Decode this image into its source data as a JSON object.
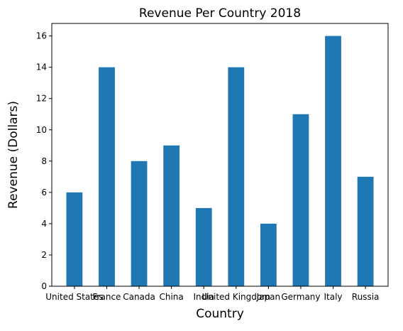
{
  "chart_data": {
    "type": "bar",
    "title": "Revenue Per Country 2018",
    "xlabel": "Country",
    "ylabel": "Revenue (Dollars)",
    "categories": [
      "United States",
      "France",
      "Canada",
      "China",
      "India",
      "United Kingdom",
      "Japan",
      "Germany",
      "Italy",
      "Russia"
    ],
    "values": [
      6,
      14,
      8,
      9,
      5,
      14,
      4,
      11,
      16,
      7
    ],
    "ylim": [
      0,
      16.8
    ],
    "yticks": [
      "0",
      "2",
      "4",
      "6",
      "8",
      "10",
      "12",
      "14",
      "16"
    ],
    "grid": false,
    "bar_color": "#1f77b4"
  }
}
